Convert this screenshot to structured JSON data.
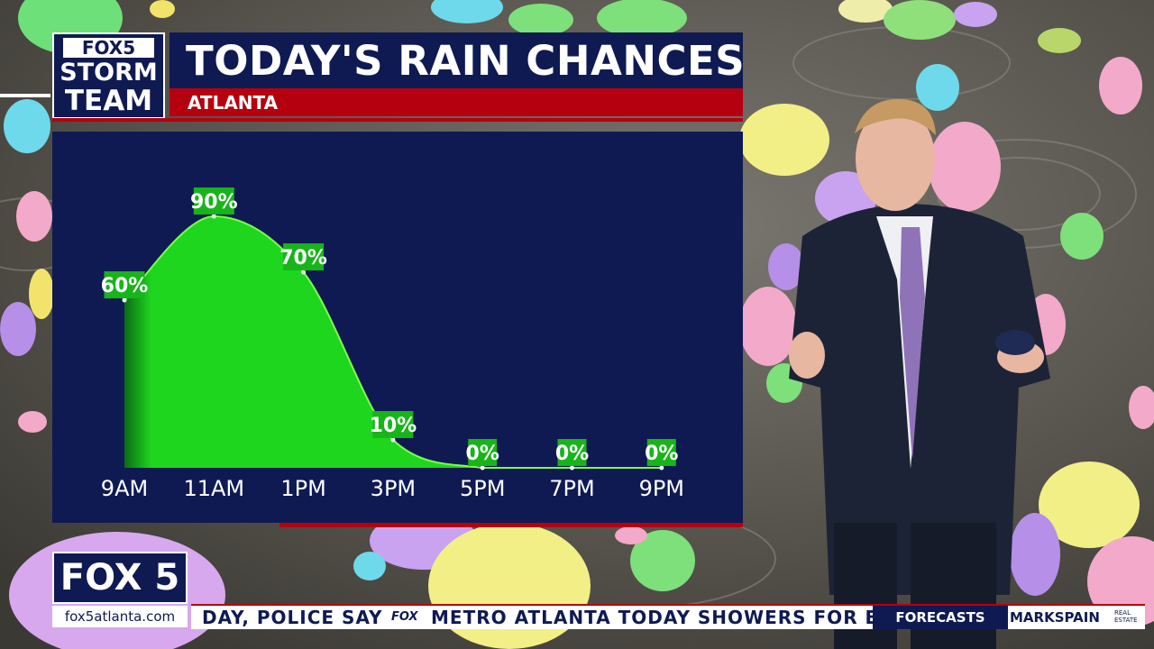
{
  "header": {
    "logo_top": "FOX5",
    "logo_line1": "STORM",
    "logo_line2": "TEAM",
    "title": "TODAY'S RAIN CHANCES",
    "location": "ATLANTA"
  },
  "chart_data": {
    "type": "area",
    "title": "TODAY'S RAIN CHANCES",
    "subtitle": "ATLANTA",
    "categories": [
      "9AM",
      "11AM",
      "1PM",
      "3PM",
      "5PM",
      "7PM",
      "9PM"
    ],
    "series": [
      {
        "values": [
          60,
          90,
          70,
          10,
          0,
          0,
          0
        ]
      }
    ],
    "data_labels": [
      "60%",
      "90%",
      "70%",
      "10%",
      "0%",
      "0%",
      "0%"
    ],
    "ylim": [
      0,
      100
    ],
    "fill_color": "#1ed61e",
    "line_color": "#7dff4a",
    "label_bg_color": "#17b41a",
    "panel_color": "#0f1a52"
  },
  "branding": {
    "station": "FOX 5",
    "url": "fox5atlanta.com"
  },
  "ticker": {
    "text_a": "DAY, POLICE SAY",
    "logo": "FOX",
    "text_b": "METRO ATLANTA  TODAY  SHOWERS FOR EA",
    "tab": "FORECASTS",
    "sponsor": "MARKSPAIN",
    "sponsor_sub": "REAL ESTATE"
  },
  "colors": {
    "navy": "#0f1a52",
    "red": "#b5000f",
    "green": "#1ed61e"
  }
}
